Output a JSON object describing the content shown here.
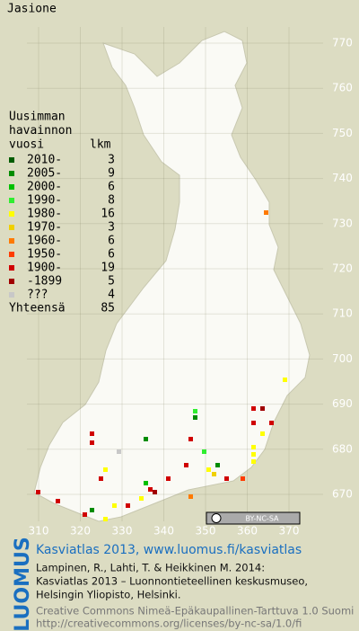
{
  "title": "Jasione",
  "legend": {
    "heading": [
      "Uusimman",
      "havainnon",
      "vuosi"
    ],
    "count_heading": "lkm",
    "rows": [
      {
        "label": "2010-",
        "count": 3,
        "color": "#005c00"
      },
      {
        "label": "2005-",
        "count": 9,
        "color": "#008c00"
      },
      {
        "label": "2000-",
        "count": 6,
        "color": "#00c000"
      },
      {
        "label": "1990-",
        "count": 8,
        "color": "#30ee30"
      },
      {
        "label": "1980-",
        "count": 16,
        "color": "#ffff00"
      },
      {
        "label": "1970-",
        "count": 3,
        "color": "#f0d000"
      },
      {
        "label": "1960-",
        "count": 6,
        "color": "#ff7a00"
      },
      {
        "label": "1950-",
        "count": 6,
        "color": "#ff3c00"
      },
      {
        "label": "1900-",
        "count": 19,
        "color": "#d00000"
      },
      {
        "label": "-1899",
        "count": 5,
        "color": "#a00000"
      },
      {
        "label": "???",
        "count": 4,
        "color": "#c8c8c8"
      }
    ],
    "total_label": "Yhteensä",
    "total": 85
  },
  "grid": {
    "north": [
      770,
      760,
      750,
      740,
      730,
      720,
      710,
      700,
      690,
      680,
      670
    ],
    "east": [
      310,
      320,
      330,
      340,
      350,
      360,
      370
    ]
  },
  "license_badge": "BY-NC-SA",
  "footer": {
    "logo": "LUOMUS",
    "headline": "Kasviatlas 2013, www.luomus.fi/kasviatlas",
    "citation": [
      "Lampinen, R., Lahti, T. & Heikkinen M. 2014:",
      "Kasviatlas 2013 – Luonnontieteellinen keskusmuseo,",
      "Helsingin Yliopisto, Helsinki."
    ],
    "license": [
      "Creative Commons Nimeä-Epäkaupallinen-Tarttuva 1.0 Suomi",
      "http://creativecommons.org/licenses/by-nc-sa/1.0/fi"
    ]
  }
}
